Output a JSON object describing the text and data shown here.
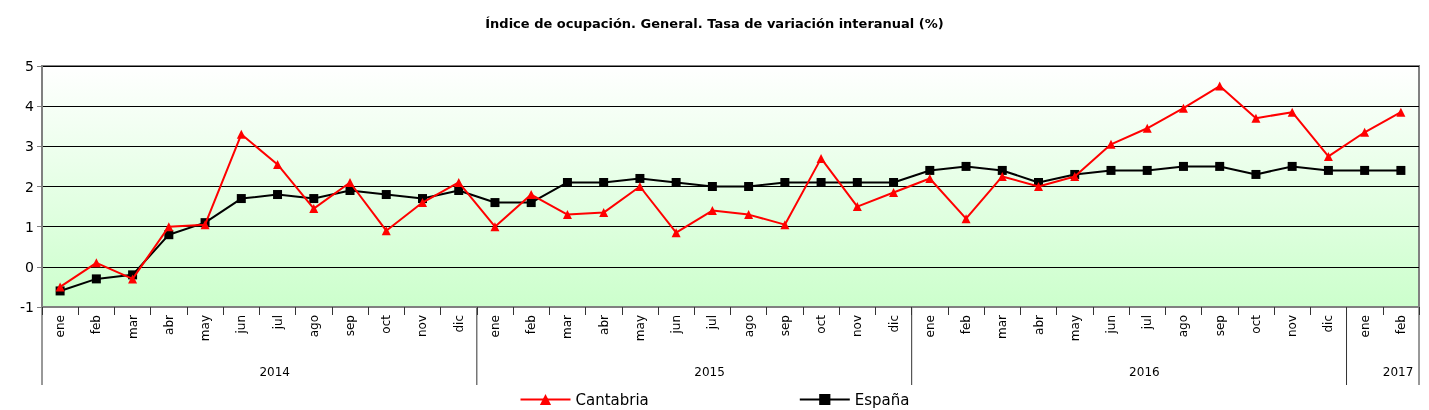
{
  "chart_data": {
    "type": "line",
    "title": "Índice de ocupación. General. Tasa de variación interanual (%)",
    "categories": [
      "ene",
      "feb",
      "mar",
      "abr",
      "may",
      "jun",
      "jul",
      "ago",
      "sep",
      "oct",
      "nov",
      "dic",
      "ene",
      "feb",
      "mar",
      "abr",
      "may",
      "jun",
      "jul",
      "ago",
      "sep",
      "oct",
      "nov",
      "dic",
      "ene",
      "feb",
      "mar",
      "abr",
      "may",
      "jun",
      "jul",
      "ago",
      "sep",
      "oct",
      "nov",
      "dic",
      "ene",
      "feb"
    ],
    "series": [
      {
        "name": "Cantabria",
        "color": "#ff0000",
        "marker": "triangle",
        "values": [
          -0.5,
          0.1,
          -0.3,
          1.0,
          1.05,
          3.3,
          2.55,
          1.45,
          2.1,
          0.9,
          1.6,
          2.1,
          1.0,
          1.8,
          1.3,
          1.35,
          2.0,
          0.85,
          1.4,
          1.3,
          1.05,
          2.7,
          1.5,
          1.85,
          2.2,
          1.2,
          2.25,
          2.0,
          2.25,
          3.05,
          3.45,
          3.95,
          4.5,
          3.7,
          3.85,
          2.75,
          3.35,
          3.85
        ]
      },
      {
        "name": "España",
        "color": "#000000",
        "marker": "square",
        "values": [
          -0.6,
          -0.3,
          -0.2,
          0.8,
          1.1,
          1.7,
          1.8,
          1.7,
          1.9,
          1.8,
          1.7,
          1.9,
          1.6,
          1.6,
          2.1,
          2.1,
          2.2,
          2.1,
          2.0,
          2.0,
          2.1,
          2.1,
          2.1,
          2.1,
          2.4,
          2.5,
          2.4,
          2.1,
          2.3,
          2.4,
          2.4,
          2.5,
          2.5,
          2.3,
          2.5,
          2.4,
          2.4,
          2.4
        ]
      }
    ],
    "annotations": [
      "2014",
      "2015",
      "2016",
      "2017"
    ],
    "ylim": [
      -1,
      5
    ],
    "yticks": [
      -1,
      0,
      1,
      2,
      3,
      4,
      5
    ],
    "grid": "y",
    "legend": "bottom"
  }
}
